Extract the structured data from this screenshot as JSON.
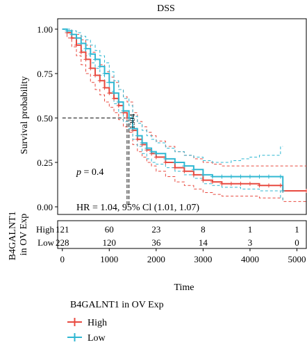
{
  "chart_data": {
    "type": "line",
    "title": "DSS",
    "xlabel": "Time",
    "ylabel": "Survival probability",
    "xlim": [
      -100,
      5200
    ],
    "ylim": [
      0,
      1
    ],
    "x_ticks": [
      0,
      1000,
      2000,
      3000,
      4000,
      5000
    ],
    "y_ticks": [
      0.0,
      0.25,
      0.5,
      0.75,
      1.0
    ],
    "x_tick_labels": [
      "0",
      "1000",
      "2000",
      "3000",
      "4000",
      "5000"
    ],
    "y_tick_labels": [
      "0.00",
      "0.25",
      "0.50",
      "0.75",
      "1.00"
    ],
    "grid": false,
    "annotations": {
      "p_label": "p",
      "p_value": " = 0.4",
      "hr_text": "HR = 1.04, 95% Cl (1.01, 1.07)",
      "median_label": "1304",
      "median_times": [
        1380,
        1420
      ],
      "median_survival": 0.5
    },
    "colors": {
      "high": "#e8493f",
      "low": "#2fb7d2"
    },
    "series": [
      {
        "name": "High",
        "color": "#e8493f",
        "x": [
          0,
          100,
          200,
          300,
          400,
          500,
          600,
          700,
          800,
          900,
          1000,
          1100,
          1200,
          1300,
          1380,
          1500,
          1600,
          1700,
          1800,
          1900,
          2000,
          2200,
          2400,
          2600,
          2800,
          3000,
          3200,
          3400,
          3600,
          3800,
          4000,
          4200,
          4400,
          4650,
          4700,
          5200
        ],
        "y": [
          1.0,
          0.98,
          0.95,
          0.91,
          0.87,
          0.83,
          0.78,
          0.74,
          0.71,
          0.67,
          0.64,
          0.61,
          0.57,
          0.53,
          0.5,
          0.43,
          0.38,
          0.35,
          0.32,
          0.3,
          0.28,
          0.25,
          0.22,
          0.2,
          0.18,
          0.15,
          0.14,
          0.13,
          0.13,
          0.13,
          0.13,
          0.12,
          0.12,
          0.12,
          0.09,
          0.09
        ],
        "ci_upper": [
          1.0,
          1.0,
          0.99,
          0.97,
          0.94,
          0.91,
          0.87,
          0.83,
          0.8,
          0.76,
          0.73,
          0.7,
          0.66,
          0.62,
          0.59,
          0.53,
          0.48,
          0.45,
          0.42,
          0.4,
          0.37,
          0.34,
          0.31,
          0.29,
          0.27,
          0.25,
          0.24,
          0.23,
          0.23,
          0.23,
          0.23,
          0.23,
          0.23,
          0.23,
          0.23,
          0.23
        ],
        "ci_lower": [
          1.0,
          0.95,
          0.9,
          0.85,
          0.8,
          0.75,
          0.7,
          0.66,
          0.63,
          0.59,
          0.56,
          0.53,
          0.49,
          0.45,
          0.42,
          0.35,
          0.31,
          0.28,
          0.25,
          0.23,
          0.2,
          0.17,
          0.14,
          0.12,
          0.1,
          0.08,
          0.07,
          0.06,
          0.06,
          0.06,
          0.06,
          0.05,
          0.05,
          0.05,
          0.03,
          0.03
        ]
      },
      {
        "name": "Low",
        "color": "#2fb7d2",
        "x": [
          0,
          100,
          200,
          300,
          400,
          500,
          600,
          700,
          800,
          900,
          1000,
          1100,
          1200,
          1300,
          1420,
          1500,
          1600,
          1700,
          1800,
          1900,
          2000,
          2200,
          2400,
          2600,
          2800,
          3000,
          3200,
          3400,
          3600,
          3800,
          4000,
          4200,
          4400,
          4650,
          4700
        ],
        "y": [
          1.0,
          0.99,
          0.97,
          0.95,
          0.92,
          0.89,
          0.86,
          0.83,
          0.79,
          0.75,
          0.7,
          0.64,
          0.59,
          0.54,
          0.5,
          0.44,
          0.4,
          0.36,
          0.33,
          0.31,
          0.3,
          0.27,
          0.25,
          0.23,
          0.21,
          0.18,
          0.17,
          0.17,
          0.17,
          0.17,
          0.17,
          0.17,
          0.17,
          0.17,
          0.09
        ],
        "ci_upper": [
          1.0,
          1.0,
          0.99,
          0.98,
          0.96,
          0.94,
          0.91,
          0.88,
          0.85,
          0.81,
          0.76,
          0.71,
          0.66,
          0.61,
          0.57,
          0.51,
          0.47,
          0.43,
          0.4,
          0.38,
          0.36,
          0.33,
          0.31,
          0.29,
          0.28,
          0.26,
          0.25,
          0.25,
          0.26,
          0.27,
          0.28,
          0.29,
          0.29,
          0.34,
          0.34
        ],
        "ci_lower": [
          1.0,
          0.98,
          0.95,
          0.92,
          0.88,
          0.85,
          0.81,
          0.78,
          0.74,
          0.7,
          0.65,
          0.58,
          0.53,
          0.48,
          0.44,
          0.38,
          0.34,
          0.3,
          0.27,
          0.25,
          0.24,
          0.22,
          0.2,
          0.18,
          0.16,
          0.13,
          0.12,
          0.11,
          0.11,
          0.1,
          0.1,
          0.09,
          0.09,
          0.05,
          0.03
        ]
      }
    ],
    "risk_table": {
      "title": "B4GALNT1\nin OV Exp",
      "times": [
        0,
        1000,
        2000,
        3000,
        4000,
        5000
      ],
      "rows": [
        {
          "label": "High",
          "counts": [
            "121",
            "60",
            "23",
            "8",
            "1",
            "1"
          ]
        },
        {
          "label": "Low",
          "counts": [
            "228",
            "120",
            "36",
            "14",
            "3",
            "0"
          ]
        }
      ]
    },
    "legend": {
      "title": "B4GALNT1 in OV Exp",
      "entries": [
        "High",
        "Low"
      ],
      "placement": "bottom-left"
    }
  }
}
